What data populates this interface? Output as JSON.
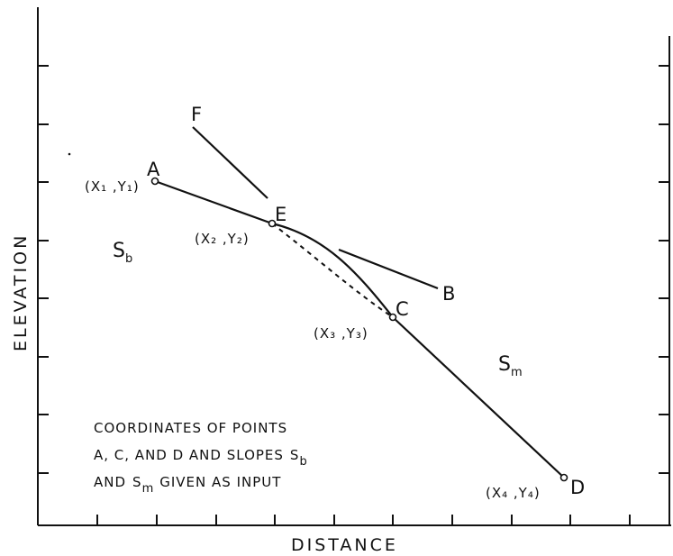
{
  "axes": {
    "xlabel": "DISTANCE",
    "ylabel": "ELEVATION"
  },
  "points": {
    "A": {
      "label": "A",
      "coord_label": "(X₁ ,Y₁)"
    },
    "E": {
      "label": "E",
      "coord_label": "(X₂ ,Y₂)"
    },
    "C": {
      "label": "C",
      "coord_label": "(X₃ ,Y₃)"
    },
    "D": {
      "label": "D",
      "coord_label": "(X₄ ,Y₄)"
    },
    "F": {
      "label": "F"
    },
    "B": {
      "label": "B"
    }
  },
  "slopes": {
    "sb": {
      "symbol": "S",
      "subscript": "b"
    },
    "sm": {
      "symbol": "S",
      "subscript": "m"
    }
  },
  "note": {
    "line1": "COORDINATES OF POINTS",
    "line2_prefix": "A, C, AND D AND SLOPES",
    "line2_symbol": "S",
    "line2_sub": "b",
    "line3_prefix": "AND",
    "line3_symbol": "S",
    "line3_sub": "m",
    "line3_suffix": "GIVEN AS INPUT"
  },
  "colors": {
    "ink": "#111111",
    "background": "#ffffff"
  }
}
